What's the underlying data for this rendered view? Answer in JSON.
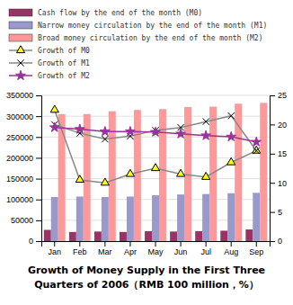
{
  "chart_data": {
    "type": "bar",
    "title": [
      "Growth of Money Supply in the First Three",
      "Quarters of 2006（RMB 100 million，%）"
    ],
    "categories": [
      "Jan",
      "Feb",
      "Mar",
      "Apr",
      "May",
      "Jun",
      "Jul",
      "Aug",
      "Sep"
    ],
    "series": [
      {
        "name": "Cash flow by the end of the month (M0)",
        "type": "bar",
        "color": "#993366",
        "values": [
          27000,
          22000,
          23000,
          22000,
          24000,
          23000,
          24000,
          25000,
          28000
        ]
      },
      {
        "name": "Narrow money circulation by the end of the month (M1)",
        "type": "bar",
        "color": "#9999cc",
        "values": [
          106000,
          107000,
          106000,
          107000,
          110000,
          112000,
          113000,
          115000,
          116000
        ]
      },
      {
        "name": "Broad money circulation by the end of the month (M2)",
        "type": "bar",
        "color": "#ff9999",
        "values": [
          305000,
          305000,
          312000,
          315000,
          317000,
          322000,
          323000,
          330000,
          332000
        ]
      },
      {
        "name": "Growth of M0",
        "type": "line",
        "axis": "y2",
        "color": "#888888",
        "marker": "triangle",
        "values": [
          22.5,
          10.5,
          10.0,
          11.5,
          12.5,
          11.5,
          11.0,
          13.5,
          15.5
        ]
      },
      {
        "name": "Growth of M1",
        "type": "line",
        "axis": "y2",
        "color": "#888888",
        "marker": "x",
        "values": [
          20.0,
          18.5,
          17.5,
          18.0,
          19.0,
          19.5,
          20.5,
          21.5,
          15.5
        ]
      },
      {
        "name": "Growth of M2",
        "type": "line",
        "axis": "y2",
        "color": "#993399",
        "marker": "star",
        "values": [
          19.5,
          19.2,
          18.8,
          18.8,
          18.7,
          18.4,
          18.1,
          17.9,
          17.0
        ]
      }
    ],
    "ylim": [
      0,
      350000
    ],
    "yticks": [
      0,
      50000,
      100000,
      150000,
      200000,
      250000,
      300000,
      350000
    ],
    "y2lim": [
      0,
      25
    ],
    "y2ticks": [
      0,
      5,
      10,
      15,
      20,
      25
    ],
    "grid": true,
    "legend": "top"
  }
}
